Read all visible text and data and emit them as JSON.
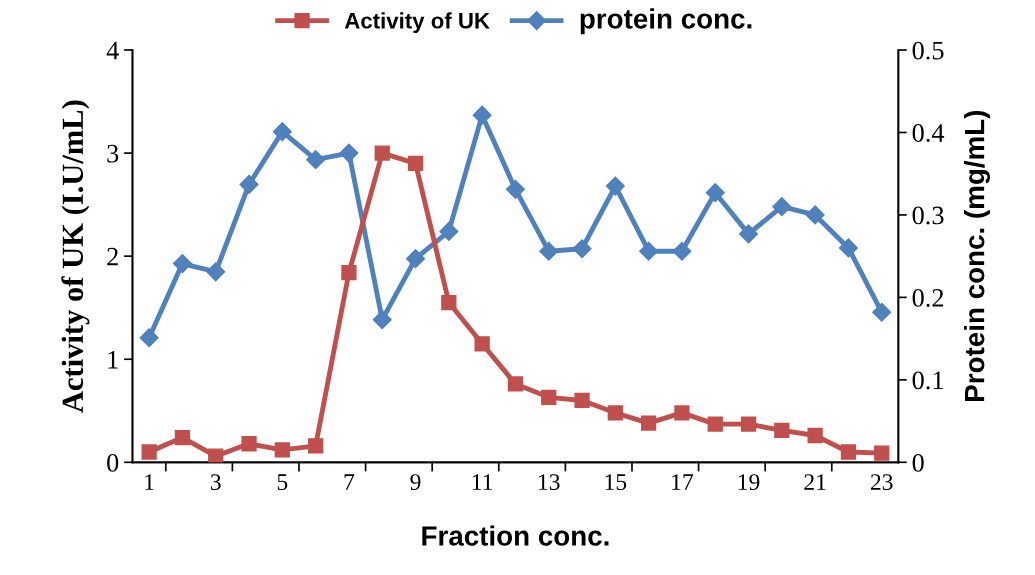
{
  "chart_data": {
    "type": "line",
    "categories": [
      "1",
      null,
      "3",
      null,
      "5",
      null,
      "7",
      null,
      "9",
      null,
      "11",
      null,
      "13",
      null,
      "15",
      null,
      "17",
      null,
      "19",
      null,
      "21",
      null,
      "23"
    ],
    "series": [
      {
        "name": "Activity of UK",
        "color": "#c0504d",
        "marker": "square",
        "values": [
          0.1,
          0.24,
          0.06,
          0.18,
          0.12,
          0.16,
          1.84,
          3.0,
          2.9,
          1.55,
          1.15,
          0.76,
          0.63,
          0.6,
          0.48,
          0.38,
          0.48,
          0.37,
          0.37,
          0.31,
          0.26,
          0.1,
          0.09
        ]
      },
      {
        "name": "protein conc.",
        "color": "#4f81bd",
        "marker": "diamond",
        "axis": "y2",
        "values": [
          0.151,
          0.241,
          0.231,
          0.337,
          0.401,
          0.367,
          0.375,
          0.173,
          0.247,
          0.28,
          0.421,
          0.331,
          0.256,
          0.259,
          0.335,
          0.256,
          0.256,
          0.327,
          0.277,
          0.31,
          0.3,
          0.26,
          0.182
        ]
      }
    ],
    "xlabel": "Fraction conc.",
    "ylabel": "Activity of UK (I.U/mL)",
    "y2label": "Protein conc. (mg/mL)",
    "ylim": [
      0,
      4
    ],
    "yticks": [
      0,
      1,
      2,
      3,
      4
    ],
    "y2lim": [
      0,
      0.5
    ],
    "y2ticks": [
      0,
      0.1,
      0.2,
      0.3,
      0.4,
      0.5
    ],
    "legend": "top",
    "grid": false
  }
}
